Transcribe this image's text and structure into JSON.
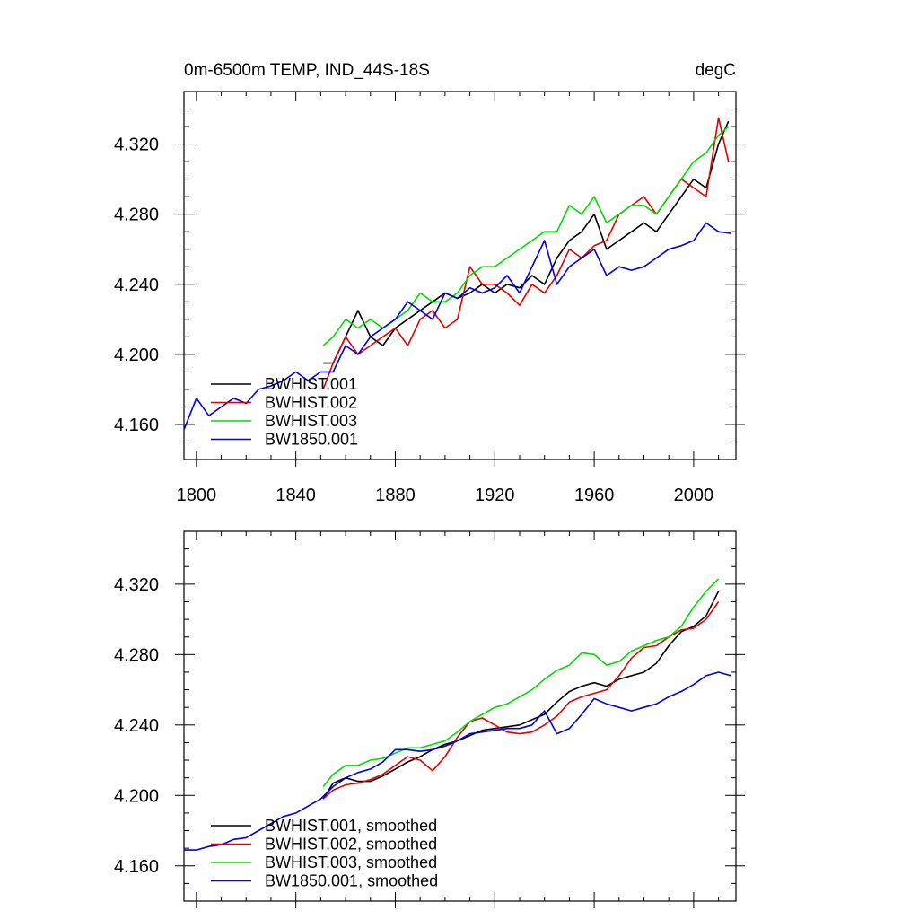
{
  "chart_data": [
    {
      "type": "line",
      "title": "0m-6500m TEMP, IND_44S-18S",
      "units": "degC",
      "xlabel": "",
      "ylabel": "",
      "xlim": [
        1795,
        2017
      ],
      "ylim": [
        4.14,
        4.35
      ],
      "xticks": [
        1800,
        1840,
        1880,
        1920,
        1960,
        2000
      ],
      "xtick_labels": [
        "1800",
        "1840",
        "1880",
        "1920",
        "1960",
        "2000"
      ],
      "yticks": [
        4.16,
        4.2,
        4.24,
        4.28,
        4.32
      ],
      "ytick_labels": [
        "4.160",
        "4.200",
        "4.240",
        "4.280",
        "4.320"
      ],
      "grid": false,
      "legend_position": "bottom-left",
      "series": [
        {
          "name": "BWHIST.001",
          "color": "#000000",
          "x": [
            1851,
            1855,
            1860,
            1865,
            1870,
            1875,
            1880,
            1885,
            1890,
            1895,
            1900,
            1905,
            1910,
            1915,
            1920,
            1925,
            1930,
            1935,
            1940,
            1945,
            1950,
            1955,
            1960,
            1965,
            1970,
            1975,
            1980,
            1985,
            1990,
            1995,
            2000,
            2005,
            2010,
            2014
          ],
          "values": [
            4.195,
            4.195,
            4.21,
            4.225,
            4.21,
            4.205,
            4.215,
            4.22,
            4.225,
            4.23,
            4.235,
            4.232,
            4.235,
            4.24,
            4.235,
            4.24,
            4.238,
            4.245,
            4.24,
            4.255,
            4.265,
            4.27,
            4.28,
            4.26,
            4.265,
            4.27,
            4.275,
            4.27,
            4.28,
            4.29,
            4.3,
            4.295,
            4.32,
            4.333
          ]
        },
        {
          "name": "BWHIST.002",
          "color": "#e00000",
          "x": [
            1851,
            1855,
            1860,
            1865,
            1870,
            1875,
            1880,
            1885,
            1890,
            1895,
            1900,
            1905,
            1910,
            1915,
            1920,
            1925,
            1930,
            1935,
            1940,
            1945,
            1950,
            1955,
            1960,
            1965,
            1970,
            1975,
            1980,
            1985,
            1990,
            1995,
            2000,
            2005,
            2010,
            2014
          ],
          "values": [
            4.18,
            4.195,
            4.21,
            4.2,
            4.205,
            4.21,
            4.215,
            4.205,
            4.22,
            4.225,
            4.215,
            4.22,
            4.25,
            4.24,
            4.24,
            4.235,
            4.228,
            4.24,
            4.235,
            4.245,
            4.26,
            4.255,
            4.262,
            4.265,
            4.28,
            4.285,
            4.29,
            4.28,
            4.29,
            4.3,
            4.295,
            4.29,
            4.335,
            4.31
          ]
        },
        {
          "name": "BWHIST.003",
          "color": "#00dd00",
          "x": [
            1851,
            1855,
            1860,
            1865,
            1870,
            1875,
            1880,
            1885,
            1890,
            1895,
            1900,
            1905,
            1910,
            1915,
            1920,
            1925,
            1930,
            1935,
            1940,
            1945,
            1950,
            1955,
            1960,
            1965,
            1970,
            1975,
            1980,
            1985,
            1990,
            1995,
            2000,
            2005,
            2010,
            2014
          ],
          "values": [
            4.205,
            4.21,
            4.22,
            4.215,
            4.22,
            4.215,
            4.22,
            4.225,
            4.235,
            4.23,
            4.23,
            4.235,
            4.245,
            4.25,
            4.25,
            4.255,
            4.26,
            4.265,
            4.27,
            4.27,
            4.285,
            4.28,
            4.29,
            4.275,
            4.28,
            4.285,
            4.285,
            4.28,
            4.29,
            4.3,
            4.31,
            4.315,
            4.325,
            4.33
          ]
        },
        {
          "name": "BW1850.001",
          "color": "#0000dd",
          "x": [
            1795,
            1800,
            1805,
            1810,
            1815,
            1820,
            1825,
            1830,
            1835,
            1840,
            1845,
            1850,
            1855,
            1860,
            1865,
            1870,
            1875,
            1880,
            1885,
            1890,
            1895,
            1900,
            1905,
            1910,
            1915,
            1920,
            1925,
            1930,
            1935,
            1940,
            1945,
            1950,
            1955,
            1960,
            1965,
            1970,
            1975,
            1980,
            1985,
            1990,
            1995,
            2000,
            2005,
            2010,
            2015
          ],
          "values": [
            4.157,
            4.175,
            4.165,
            4.17,
            4.175,
            4.172,
            4.18,
            4.182,
            4.185,
            4.19,
            4.185,
            4.19,
            4.19,
            4.205,
            4.2,
            4.21,
            4.215,
            4.22,
            4.23,
            4.225,
            4.22,
            4.235,
            4.232,
            4.238,
            4.235,
            4.238,
            4.245,
            4.235,
            4.25,
            4.265,
            4.24,
            4.25,
            4.255,
            4.26,
            4.245,
            4.25,
            4.248,
            4.25,
            4.255,
            4.26,
            4.262,
            4.265,
            4.275,
            4.27,
            4.269
          ]
        }
      ]
    },
    {
      "type": "line",
      "title": "",
      "xlabel": "",
      "ylabel": "",
      "xlim": [
        1795,
        2017
      ],
      "ylim": [
        4.14,
        4.35
      ],
      "xticks": [
        1800,
        1840,
        1880,
        1920,
        1960,
        2000
      ],
      "yticks": [
        4.16,
        4.2,
        4.24,
        4.28,
        4.32
      ],
      "ytick_labels": [
        "4.160",
        "4.200",
        "4.240",
        "4.280",
        "4.320"
      ],
      "grid": false,
      "legend_position": "bottom-left",
      "series": [
        {
          "name": "BWHIST.001, smoothed",
          "color": "#000000",
          "x": [
            1851,
            1855,
            1860,
            1865,
            1870,
            1875,
            1880,
            1885,
            1890,
            1895,
            1900,
            1905,
            1910,
            1915,
            1920,
            1925,
            1930,
            1935,
            1940,
            1945,
            1950,
            1955,
            1960,
            1965,
            1970,
            1975,
            1980,
            1985,
            1990,
            1995,
            2000,
            2005,
            2010
          ],
          "values": [
            4.198,
            4.207,
            4.21,
            4.208,
            4.208,
            4.211,
            4.215,
            4.219,
            4.222,
            4.226,
            4.229,
            4.231,
            4.234,
            4.237,
            4.238,
            4.239,
            4.24,
            4.243,
            4.246,
            4.253,
            4.259,
            4.262,
            4.264,
            4.262,
            4.266,
            4.268,
            4.27,
            4.275,
            4.285,
            4.293,
            4.296,
            4.302,
            4.316
          ]
        },
        {
          "name": "BWHIST.002, smoothed",
          "color": "#e00000",
          "x": [
            1851,
            1855,
            1860,
            1865,
            1870,
            1875,
            1880,
            1885,
            1890,
            1895,
            1900,
            1905,
            1910,
            1915,
            1920,
            1925,
            1930,
            1935,
            1940,
            1945,
            1950,
            1955,
            1960,
            1965,
            1970,
            1975,
            1980,
            1985,
            1990,
            1995,
            2000,
            2005,
            2010
          ],
          "values": [
            4.198,
            4.203,
            4.206,
            4.207,
            4.209,
            4.212,
            4.217,
            4.222,
            4.22,
            4.214,
            4.222,
            4.233,
            4.242,
            4.244,
            4.24,
            4.236,
            4.235,
            4.236,
            4.24,
            4.245,
            4.253,
            4.256,
            4.258,
            4.26,
            4.268,
            4.278,
            4.284,
            4.285,
            4.29,
            4.294,
            4.295,
            4.3,
            4.31
          ]
        },
        {
          "name": "BWHIST.003, smoothed",
          "color": "#00dd00",
          "x": [
            1851,
            1855,
            1860,
            1865,
            1870,
            1875,
            1880,
            1885,
            1890,
            1895,
            1900,
            1905,
            1910,
            1915,
            1920,
            1925,
            1930,
            1935,
            1940,
            1945,
            1950,
            1955,
            1960,
            1965,
            1970,
            1975,
            1980,
            1985,
            1990,
            1995,
            2000,
            2005,
            2010
          ],
          "values": [
            4.205,
            4.212,
            4.217,
            4.217,
            4.22,
            4.221,
            4.224,
            4.227,
            4.227,
            4.229,
            4.231,
            4.236,
            4.242,
            4.246,
            4.25,
            4.252,
            4.256,
            4.26,
            4.266,
            4.271,
            4.274,
            4.281,
            4.28,
            4.274,
            4.276,
            4.282,
            4.285,
            4.288,
            4.29,
            4.296,
            4.307,
            4.316,
            4.323
          ]
        },
        {
          "name": "BW1850.001, smoothed",
          "color": "#0000dd",
          "x": [
            1795,
            1800,
            1805,
            1810,
            1815,
            1820,
            1825,
            1830,
            1835,
            1840,
            1845,
            1850,
            1855,
            1860,
            1865,
            1870,
            1875,
            1880,
            1885,
            1890,
            1895,
            1900,
            1905,
            1910,
            1915,
            1920,
            1925,
            1930,
            1935,
            1940,
            1945,
            1950,
            1955,
            1960,
            1965,
            1970,
            1975,
            1980,
            1985,
            1990,
            1995,
            2000,
            2005,
            2010,
            2015
          ],
          "values": [
            4.169,
            4.169,
            4.171,
            4.172,
            4.175,
            4.176,
            4.18,
            4.184,
            4.188,
            4.19,
            4.194,
            4.198,
            4.205,
            4.21,
            4.213,
            4.215,
            4.219,
            4.226,
            4.226,
            4.225,
            4.226,
            4.228,
            4.231,
            4.235,
            4.236,
            4.237,
            4.238,
            4.238,
            4.24,
            4.248,
            4.235,
            4.238,
            4.246,
            4.255,
            4.252,
            4.25,
            4.248,
            4.25,
            4.252,
            4.256,
            4.259,
            4.263,
            4.268,
            4.27,
            4.268
          ]
        }
      ]
    }
  ]
}
